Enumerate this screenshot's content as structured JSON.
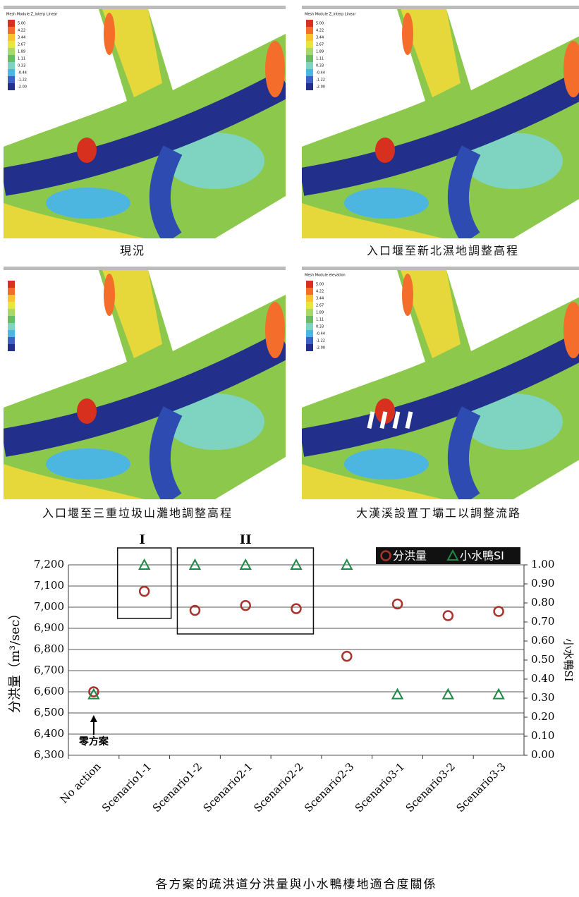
{
  "maps": [
    {
      "legend_title": "Mesh Module Z_interp Linear",
      "legend": [
        "5.00",
        "4.22",
        "3.44",
        "2.67",
        "1.89",
        "1.11",
        "0.33",
        "-0.44",
        "-1.22",
        "-2.00"
      ],
      "caption": "現況"
    },
    {
      "legend_title": "Mesh Module Z_interp Linear",
      "legend": [
        "5.00",
        "4.22",
        "3.44",
        "2.67",
        "1.89",
        "1.11",
        "0.33",
        "-0.44",
        "-1.22",
        "-2.00"
      ],
      "caption": "入口堰至新北濕地調整高程"
    },
    {
      "caption": "入口堰至三重垃圾山灘地調整高程"
    },
    {
      "legend_title": "Mesh Module elevation",
      "legend": [
        "5.00",
        "4.22",
        "3.44",
        "2.67",
        "1.89",
        "1.11",
        "0.33",
        "-0.44",
        "-1.22",
        "-2.00"
      ],
      "caption": "大漢溪設置丁壩工以調整流路"
    }
  ],
  "chart_data": {
    "type": "scatter",
    "title": "各方案的疏洪道分洪量與小水鴨棲地適合度關係",
    "y_label": "分洪量（m³/sec）",
    "y2_label": "小水鴨SI",
    "categories": [
      "No action",
      "Scenario1-1",
      "Scenario1-2",
      "Scenario2-1",
      "Scenario2-2",
      "Scenario2-3",
      "Scenario3-1",
      "Scenario3-2",
      "Scenario3-3"
    ],
    "series": [
      {
        "name": "分洪量",
        "color": "#a8322d",
        "marker": "circle",
        "values": [
          6600,
          7075,
          6985,
          7008,
          6993,
          6768,
          7015,
          6960,
          6980
        ]
      },
      {
        "name": "小水鴨SI",
        "color": "#1f8a45",
        "marker": "triangle",
        "axis": "y2",
        "values": [
          0.32,
          1.0,
          1.0,
          1.0,
          1.0,
          1.0,
          0.32,
          0.32,
          0.32
        ]
      }
    ],
    "ylim": [
      6300,
      7200
    ],
    "yticks": [
      {
        "value": 6300,
        "label": "6,300"
      },
      {
        "value": 6400,
        "label": "6,400"
      },
      {
        "value": 6500,
        "label": "6,500"
      },
      {
        "value": 6600,
        "label": "6,600"
      },
      {
        "value": 6700,
        "label": "6,700"
      },
      {
        "value": 6800,
        "label": "6,800"
      },
      {
        "value": 6900,
        "label": "6,900"
      },
      {
        "value": 7000,
        "label": "7,000"
      },
      {
        "value": 7100,
        "label": "7,100"
      },
      {
        "value": 7200,
        "label": "7,200"
      }
    ],
    "y2lim": [
      0,
      1
    ],
    "y2ticks": [
      {
        "value": 0,
        "label": "0.00"
      },
      {
        "value": 0.1,
        "label": "0.10"
      },
      {
        "value": 0.2,
        "label": "0.20"
      },
      {
        "value": 0.3,
        "label": "0.30"
      },
      {
        "value": 0.4,
        "label": "0.40"
      },
      {
        "value": 0.5,
        "label": "0.50"
      },
      {
        "value": 0.6,
        "label": "0.60"
      },
      {
        "value": 0.7,
        "label": "0.70"
      },
      {
        "value": 0.8,
        "label": "0.80"
      },
      {
        "value": 0.9,
        "label": "0.90"
      },
      {
        "value": 1,
        "label": "1.00"
      }
    ],
    "grid": true,
    "legend": "top-right",
    "annotations": [
      "I",
      "II",
      "零方案"
    ]
  }
}
